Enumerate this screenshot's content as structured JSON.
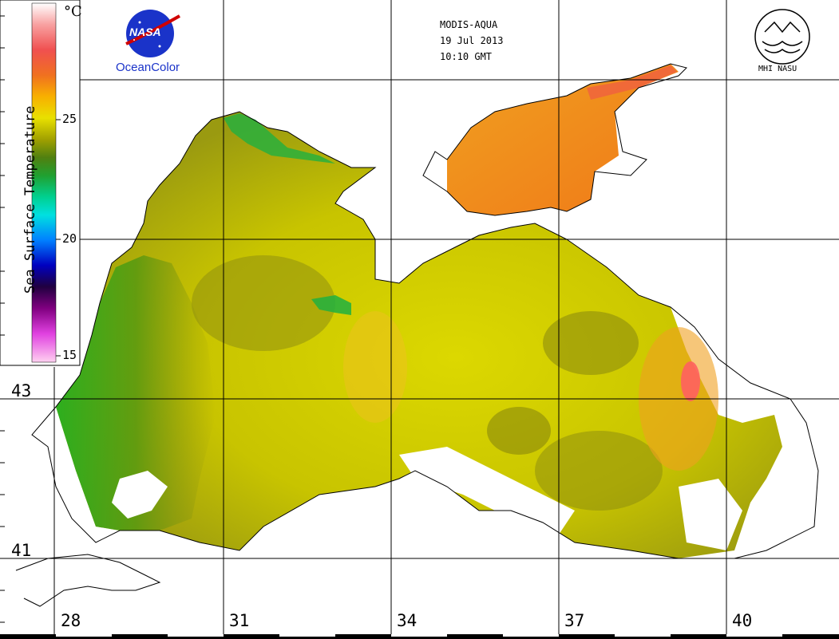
{
  "header": {
    "sensor": "MODIS-AQUA",
    "date": "19 Jul 2013",
    "time": "10:10 GMT"
  },
  "logos": {
    "nasa_text": "NASA",
    "oceancolor_text": "OceanColor",
    "mhi_text": "MHI NASU"
  },
  "colorbar": {
    "title": "Sea Surface Temperature",
    "unit": "°C",
    "ticks": [
      "25",
      "20",
      "15"
    ],
    "range": [
      15,
      28
    ],
    "colors": [
      "#ffd0f0",
      "#e040e0",
      "#800080",
      "#200040",
      "#0000c0",
      "#0080ff",
      "#00e0e0",
      "#00c060",
      "#30a020",
      "#808000",
      "#c8c000",
      "#f0e000",
      "#f8b000",
      "#f07020",
      "#f05050",
      "#f8a0a0",
      "#ffffff"
    ]
  },
  "grid": {
    "latitude_labels": [
      "43",
      "41"
    ],
    "longitude_labels": [
      "28",
      "31",
      "34",
      "37",
      "40"
    ]
  },
  "colors": {
    "warm_sea": "#e8e000",
    "cool_sea": "#8a8a10",
    "cold_upwelling": "#20b020",
    "azov_sea": "#f09020",
    "hot_spot": "#ff6060",
    "cloud": "#ffffff"
  }
}
